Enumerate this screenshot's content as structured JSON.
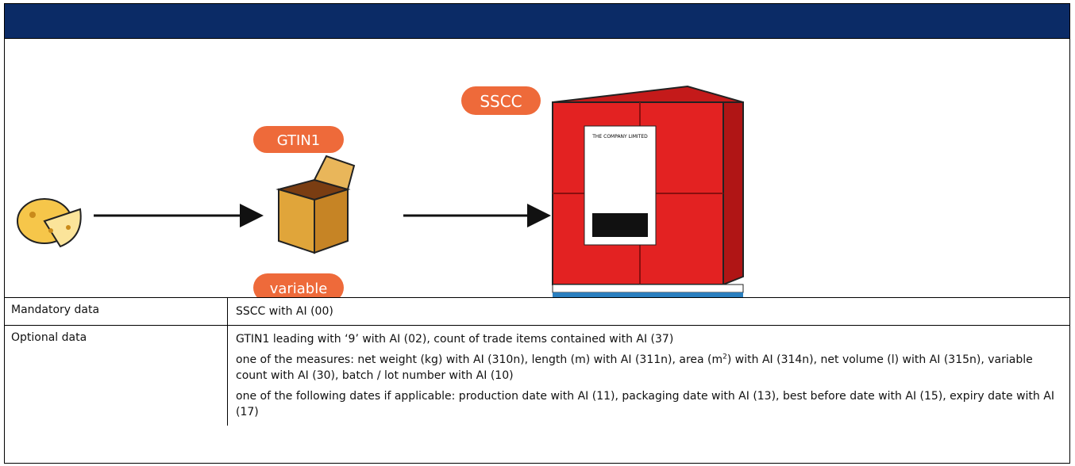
{
  "figure": {
    "badges": [
      "GTIN1",
      "variable",
      "SSCC"
    ],
    "pallet_label": "THE COMPANY LIMITED"
  },
  "table": {
    "rows": [
      {
        "label": "Mandatory data",
        "paragraphs": [
          {
            "text": "SSCC with AI (00)"
          }
        ]
      },
      {
        "label": "Optional data",
        "paragraphs": [
          {
            "text": "GTIN1 leading with ‘9’ with AI (02), count of trade items contained with AI (37)"
          },
          {
            "text": "one of the measures: net weight (kg) with AI (310n), length (m) with AI (311n), area (m",
            "sup": "2",
            "after": ") with AI (314n), net volume (l) with AI (315n), variable count with AI (30), batch / lot number with AI (10)"
          },
          {
            "text": "one of the following dates if applicable: production date with AI (11), packaging date with AI (13), best before date with AI (15), expiry date with AI (17)"
          }
        ]
      }
    ]
  }
}
